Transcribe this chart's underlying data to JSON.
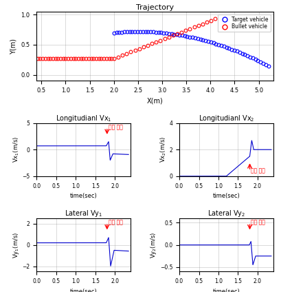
{
  "title_traj": "Trajectory",
  "legend_target": "Target vehicle",
  "legend_bullet": "Bullet vehicle",
  "traj_xlim": [
    0.4,
    5.3
  ],
  "traj_ylim": [
    -0.1,
    1.05
  ],
  "traj_xlabel": "X(m)",
  "traj_ylabel": "Y(m)",
  "traj_xticks": [
    0.5,
    1.0,
    1.5,
    2.0,
    2.5,
    3.0,
    3.5,
    4.0,
    4.5,
    5.0
  ],
  "traj_yticks": [
    0.0,
    0.5,
    1.0
  ],
  "title_vx1": "Longitudianl Vx",
  "title_vx2": "Longitudianl Vx",
  "title_vy1": "Lateral Vy",
  "title_vy2": "Lateral Vy",
  "vx1_ylabel": "Vx",
  "vx2_ylabel": "Vx",
  "vy1_ylabel": "Vy",
  "vy2_ylabel": "Vy",
  "vx1_ylim": [
    -5,
    5
  ],
  "vx1_yticks": [
    -5,
    0,
    5
  ],
  "vx2_ylim": [
    0,
    4
  ],
  "vx2_yticks": [
    0,
    2,
    4
  ],
  "vy1_ylim": [
    -2.5,
    2.5
  ],
  "vy1_yticks": [
    -2,
    0,
    2
  ],
  "vy2_ylim": [
    -0.6,
    0.6
  ],
  "vy2_yticks": [
    -0.5,
    0,
    0.5
  ],
  "time_xlim": [
    0,
    2.4
  ],
  "time_xticks": [
    0,
    0.5,
    1.0,
    1.5,
    2.0
  ],
  "xlabel_time": "time(sec)",
  "collision_time": 1.8,
  "annotation_text": "충돌 시점",
  "blue_color": "#0000CD",
  "red_color": "#FF0000",
  "target_color": "#0000FF",
  "bullet_color": "#FF0000"
}
